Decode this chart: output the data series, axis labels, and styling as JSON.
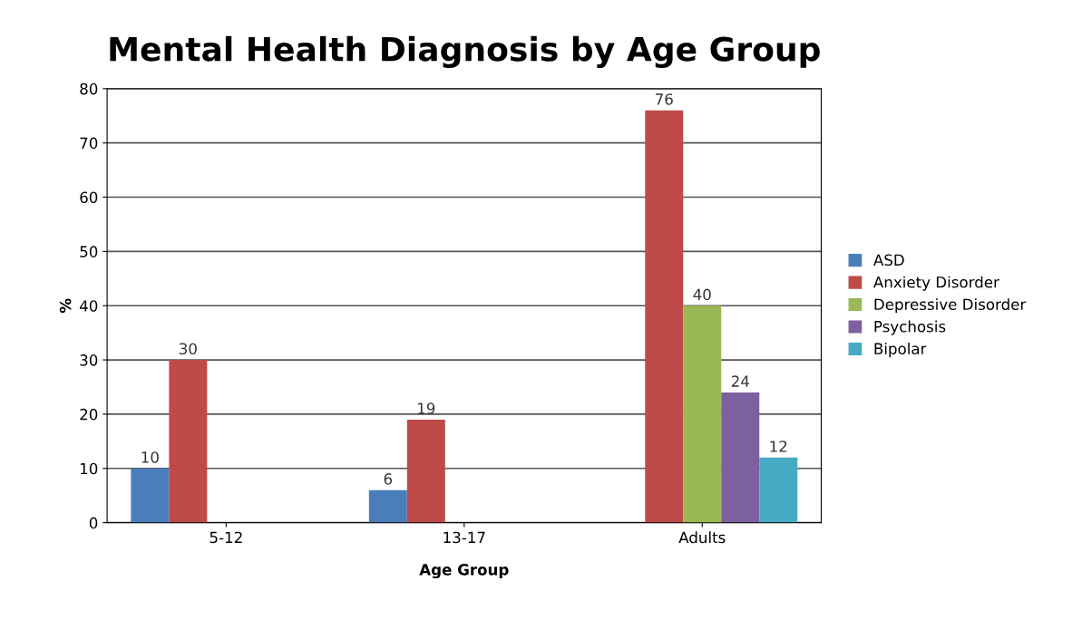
{
  "chart_data": {
    "type": "bar",
    "title": "Mental Health Diagnosis by Age Group",
    "xlabel": "Age Group",
    "ylabel": "%",
    "categories": [
      "5-12",
      "13-17",
      "Adults"
    ],
    "series": [
      {
        "name": "ASD",
        "color": "#4a7ebb",
        "values": [
          10,
          6,
          null
        ]
      },
      {
        "name": "Anxiety Disorder",
        "color": "#be4b48",
        "values": [
          30,
          19,
          76
        ]
      },
      {
        "name": "Depressive Disorder",
        "color": "#98b954",
        "values": [
          null,
          null,
          40
        ]
      },
      {
        "name": "Psychosis",
        "color": "#7d60a0",
        "values": [
          null,
          null,
          24
        ]
      },
      {
        "name": "Bipolar",
        "color": "#46aac5",
        "values": [
          null,
          null,
          12
        ]
      }
    ],
    "ylim": [
      0,
      80
    ],
    "yticks": [
      0,
      10,
      20,
      30,
      40,
      50,
      60,
      70,
      80
    ],
    "grid": "y",
    "legend": "right",
    "data_labels": true
  }
}
